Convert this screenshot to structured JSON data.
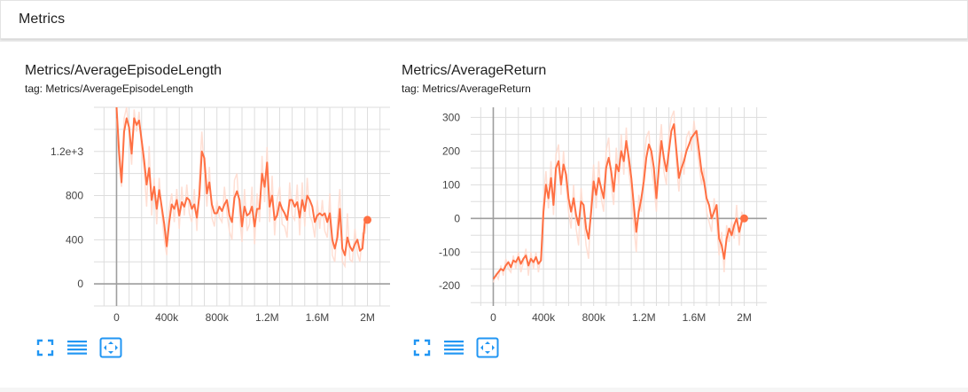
{
  "header": {
    "title": "Metrics"
  },
  "colors": {
    "series": "#ff7043",
    "series_faded": "#ffd9cd",
    "grid": "#dddddd",
    "axis": "#9e9e9e",
    "icon": "#2196f3"
  },
  "icons": [
    "fullscreen-icon",
    "toggle-log-scale-icon",
    "fit-domain-icon"
  ],
  "chart_data": [
    {
      "type": "line",
      "title": "Metrics/AverageEpisodeLength",
      "tag": "tag: Metrics/AverageEpisodeLength",
      "xlim": [
        -180000,
        2180000
      ],
      "ylim": [
        -200,
        1600
      ],
      "x_ticks": [
        0,
        400000,
        800000,
        1200000,
        1600000,
        2000000
      ],
      "x_tick_labels": [
        "0",
        "400k",
        "800k",
        "1.2M",
        "1.6M",
        "2M"
      ],
      "y_ticks": [
        0,
        400,
        800,
        1200
      ],
      "y_tick_labels": [
        "0",
        "400",
        "800",
        "1.2e+3"
      ],
      "series": [
        {
          "x": [
            0,
            20000,
            40000,
            60000,
            80000,
            100000,
            120000,
            140000,
            160000,
            180000,
            200000,
            220000,
            240000,
            260000,
            280000,
            300000,
            320000,
            340000,
            360000,
            380000,
            400000,
            420000,
            440000,
            460000,
            480000,
            500000,
            520000,
            540000,
            560000,
            580000,
            600000,
            620000,
            640000,
            660000,
            680000,
            700000,
            720000,
            740000,
            760000,
            780000,
            800000,
            820000,
            840000,
            860000,
            880000,
            900000,
            920000,
            940000,
            960000,
            980000,
            1000000,
            1020000,
            1040000,
            1060000,
            1080000,
            1100000,
            1120000,
            1140000,
            1160000,
            1180000,
            1200000,
            1220000,
            1240000,
            1260000,
            1280000,
            1300000,
            1320000,
            1340000,
            1360000,
            1380000,
            1400000,
            1420000,
            1440000,
            1460000,
            1480000,
            1500000,
            1520000,
            1540000,
            1560000,
            1580000,
            1600000,
            1620000,
            1640000,
            1660000,
            1680000,
            1700000,
            1720000,
            1740000,
            1760000,
            1780000,
            1800000,
            1820000,
            1840000,
            1860000,
            1880000,
            1900000,
            1920000,
            1940000,
            1960000,
            1980000,
            2000000
          ],
          "values": [
            1600,
            1200,
            920,
            1380,
            1500,
            1420,
            1180,
            1500,
            1440,
            1480,
            1300,
            1120,
            900,
            1050,
            760,
            880,
            680,
            850,
            700,
            540,
            340,
            560,
            720,
            680,
            760,
            620,
            740,
            700,
            780,
            760,
            680,
            720,
            600,
            800,
            1200,
            1140,
            820,
            920,
            720,
            640,
            640,
            700,
            660,
            720,
            760,
            620,
            560,
            780,
            840,
            760,
            520,
            700,
            620,
            640,
            700,
            520,
            680,
            680,
            1000,
            880,
            1100,
            700,
            800,
            580,
            620,
            740,
            680,
            640,
            580,
            760,
            760,
            700,
            740,
            600,
            760,
            660,
            800,
            760,
            700,
            560,
            620,
            640,
            620,
            640,
            560,
            640,
            400,
            320,
            420,
            680,
            320,
            260,
            420,
            340,
            300,
            360,
            400,
            300,
            320,
            580,
            580
          ],
          "faded": [
            1500,
            1100,
            880,
            1500,
            1600,
            1380,
            1080,
            1580,
            1380,
            1560,
            1200,
            1040,
            700,
            1250,
            620,
            960,
            540,
            960,
            640,
            400,
            260,
            680,
            820,
            560,
            860,
            500,
            880,
            620,
            900,
            640,
            560,
            860,
            480,
            960,
            1380,
            1020,
            700,
            1060,
            600,
            520,
            760,
            600,
            560,
            880,
            640,
            480,
            400,
            940,
            1000,
            620,
            380,
            860,
            480,
            540,
            880,
            360,
            820,
            560,
            1160,
            740,
            1240,
            560,
            980,
            440,
            760,
            880,
            540,
            520,
            420,
            920,
            620,
            580,
            900,
            440,
            920,
            520,
            960,
            620,
            560,
            420,
            760,
            500,
            760,
            480,
            420,
            820,
            260,
            200,
            560,
            860,
            200,
            160,
            640,
            220,
            200,
            500,
            280,
            200,
            460,
            460,
            620
          ]
        }
      ]
    },
    {
      "type": "line",
      "title": "Metrics/AverageReturn",
      "tag": "tag: Metrics/AverageReturn",
      "xlim": [
        -180000,
        2180000
      ],
      "ylim": [
        -260,
        330
      ],
      "x_ticks": [
        0,
        400000,
        800000,
        1200000,
        1600000,
        2000000
      ],
      "x_tick_labels": [
        "0",
        "400k",
        "800k",
        "1.2M",
        "1.6M",
        "2M"
      ],
      "y_ticks": [
        -200,
        -100,
        0,
        100,
        200,
        300
      ],
      "y_tick_labels": [
        "-200",
        "-100",
        "0",
        "100",
        "200",
        "300"
      ],
      "series": [
        {
          "x": [
            0,
            20000,
            40000,
            60000,
            80000,
            100000,
            120000,
            140000,
            160000,
            180000,
            200000,
            220000,
            240000,
            260000,
            280000,
            300000,
            320000,
            340000,
            360000,
            380000,
            400000,
            420000,
            440000,
            460000,
            480000,
            500000,
            520000,
            540000,
            560000,
            580000,
            600000,
            620000,
            640000,
            660000,
            680000,
            700000,
            720000,
            740000,
            760000,
            780000,
            800000,
            820000,
            840000,
            860000,
            880000,
            900000,
            920000,
            940000,
            960000,
            980000,
            1000000,
            1020000,
            1040000,
            1060000,
            1080000,
            1100000,
            1120000,
            1140000,
            1160000,
            1180000,
            1200000,
            1220000,
            1240000,
            1260000,
            1280000,
            1300000,
            1320000,
            1340000,
            1360000,
            1380000,
            1400000,
            1420000,
            1440000,
            1460000,
            1480000,
            1500000,
            1520000,
            1540000,
            1560000,
            1580000,
            1600000,
            1620000,
            1640000,
            1660000,
            1680000,
            1700000,
            1720000,
            1740000,
            1760000,
            1780000,
            1800000,
            1820000,
            1840000,
            1860000,
            1880000,
            1900000,
            1920000,
            1940000,
            1960000,
            1980000,
            2000000
          ],
          "values": [
            -180,
            -170,
            -160,
            -150,
            -155,
            -140,
            -130,
            -145,
            -125,
            -130,
            -115,
            -135,
            -120,
            -110,
            -140,
            -120,
            -130,
            -115,
            -135,
            -125,
            20,
            100,
            60,
            120,
            40,
            150,
            170,
            100,
            160,
            130,
            60,
            20,
            60,
            10,
            -20,
            50,
            40,
            -30,
            -60,
            20,
            110,
            70,
            120,
            90,
            60,
            150,
            180,
            140,
            80,
            160,
            140,
            200,
            170,
            230,
            180,
            120,
            40,
            -40,
            20,
            60,
            110,
            180,
            220,
            200,
            150,
            60,
            150,
            230,
            180,
            140,
            200,
            260,
            280,
            200,
            120,
            150,
            170,
            200,
            220,
            240,
            250,
            260,
            200,
            140,
            110,
            60,
            40,
            0,
            20,
            40,
            -60,
            -80,
            -120,
            -60,
            -30,
            -50,
            -20,
            0,
            -40,
            -10,
            0
          ],
          "faded": [
            -190,
            -165,
            -180,
            -140,
            -170,
            -120,
            -150,
            -160,
            -110,
            -150,
            -100,
            -160,
            -130,
            -90,
            -170,
            -100,
            -150,
            -100,
            -160,
            -110,
            60,
            140,
            30,
            170,
            10,
            190,
            220,
            70,
            200,
            100,
            20,
            -30,
            100,
            -30,
            -80,
            90,
            0,
            -80,
            -120,
            60,
            160,
            30,
            170,
            60,
            20,
            200,
            240,
            100,
            40,
            210,
            100,
            250,
            130,
            270,
            140,
            80,
            -20,
            -100,
            70,
            20,
            160,
            240,
            260,
            150,
            100,
            20,
            200,
            280,
            140,
            100,
            250,
            300,
            320,
            160,
            80,
            200,
            130,
            240,
            260,
            200,
            290,
            220,
            160,
            100,
            150,
            20,
            -10,
            -40,
            60,
            -10,
            -110,
            -40,
            -160,
            -20,
            -70,
            -10,
            -60,
            40,
            -80,
            20,
            0
          ]
        }
      ]
    }
  ]
}
